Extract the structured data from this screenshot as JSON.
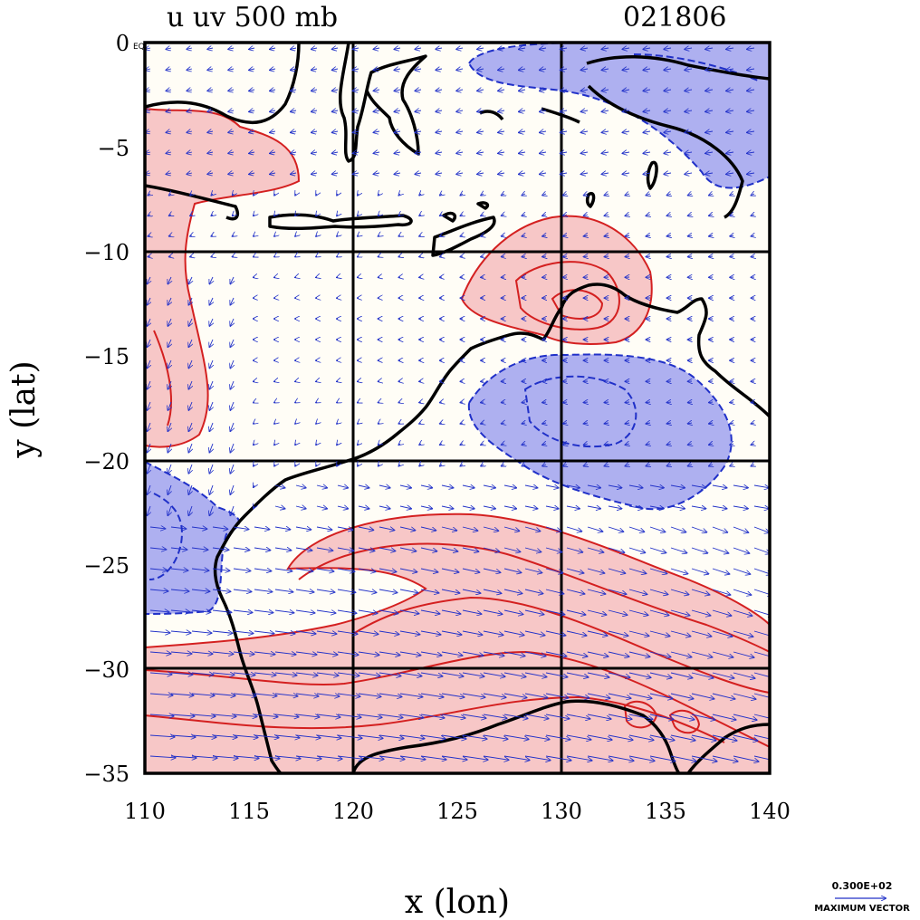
{
  "title": {
    "left": "u  uv 500 mb",
    "right": "021806"
  },
  "chart_data": {
    "type": "map",
    "variable": "u  uv 500 mb",
    "date_code": "021806",
    "xlabel": "x (lon)",
    "ylabel": "y (lat)",
    "xlim": [
      110,
      140
    ],
    "ylim": [
      -35,
      0
    ],
    "x_ticks": [
      "110",
      "115",
      "120",
      "125",
      "130",
      "135",
      "140"
    ],
    "y_ticks": [
      "0",
      "−5",
      "−10",
      "−15",
      "−20",
      "−25",
      "−30",
      "−35"
    ],
    "equator_label": "EQ",
    "grid_lines": {
      "lon": [
        120,
        130
      ],
      "lat": [
        -10,
        -20,
        -30
      ]
    },
    "positive_color": "#f7c7c7",
    "positive_line": "#d42020",
    "negative_color": "#aeb0f0",
    "negative_line": "#2030c8",
    "coast_color": "#000000",
    "vector_color": "#2030c8",
    "reference_vector": {
      "value": "0.300E+02",
      "label": "MAXIMUM VECTOR"
    }
  }
}
